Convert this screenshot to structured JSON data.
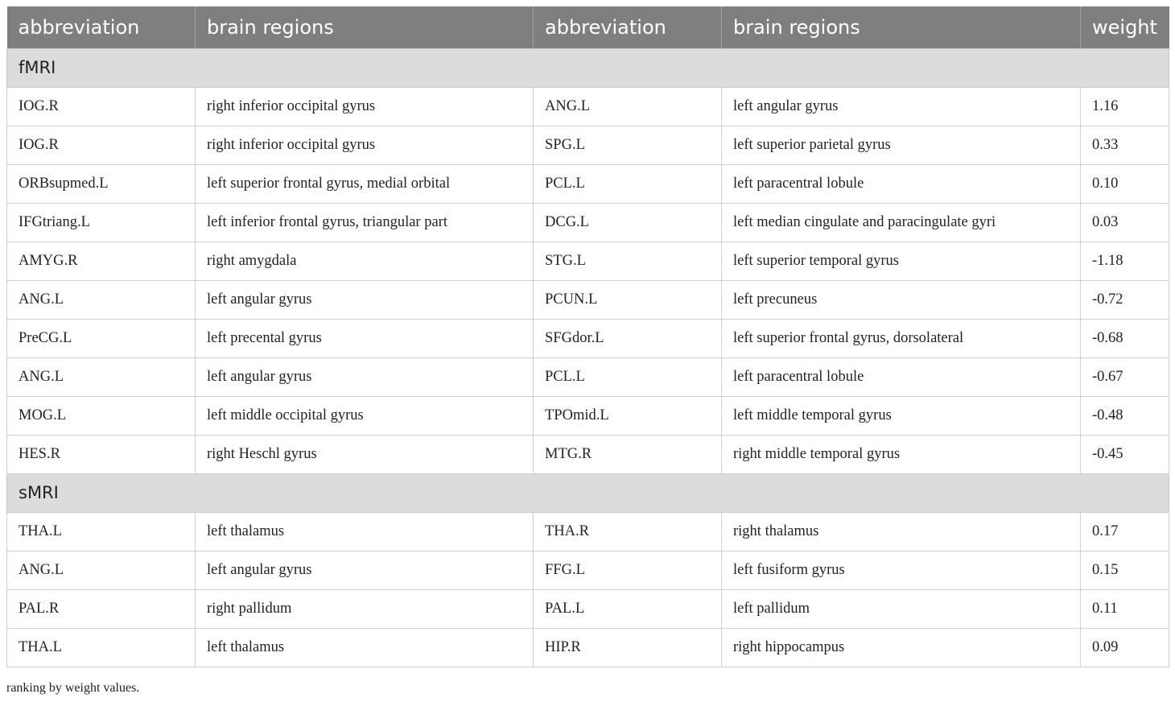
{
  "columns": [
    "abbreviation",
    "brain regions",
    "abbreviation",
    "brain regions",
    "weight"
  ],
  "sections": [
    {
      "label": "fMRI",
      "rows": [
        [
          "IOG.R",
          "right inferior occipital gyrus",
          "ANG.L",
          "left angular gyrus",
          "1.16"
        ],
        [
          "IOG.R",
          "right inferior occipital gyrus",
          "SPG.L",
          "left superior parietal gyrus",
          "0.33"
        ],
        [
          "ORBsupmed.L",
          "left superior frontal gyrus, medial orbital",
          "PCL.L",
          "left paracentral lobule",
          "0.10"
        ],
        [
          "IFGtriang.L",
          "left inferior frontal gyrus, triangular part",
          "DCG.L",
          "left median cingulate and paracingulate gyri",
          "0.03"
        ],
        [
          "AMYG.R",
          "right amygdala",
          "STG.L",
          "left superior temporal gyrus",
          "-1.18"
        ],
        [
          "ANG.L",
          "left angular gyrus",
          "PCUN.L",
          "left precuneus",
          "-0.72"
        ],
        [
          "PreCG.L",
          "left precental gyrus",
          "SFGdor.L",
          "left superior frontal gyrus, dorsolateral",
          "-0.68"
        ],
        [
          "ANG.L",
          "left angular gyrus",
          "PCL.L",
          "left paracentral lobule",
          "-0.67"
        ],
        [
          "MOG.L",
          "left middle occipital gyrus",
          "TPOmid.L",
          "left middle temporal gyrus",
          "-0.48"
        ],
        [
          "HES.R",
          "right Heschl gyrus",
          "MTG.R",
          "right middle temporal gyrus",
          "-0.45"
        ]
      ]
    },
    {
      "label": "sMRI",
      "rows": [
        [
          "THA.L",
          "left thalamus",
          "THA.R",
          "right thalamus",
          "0.17"
        ],
        [
          "ANG.L",
          "left angular gyrus",
          "FFG.L",
          "left fusiform gyrus",
          "0.15"
        ],
        [
          "PAL.R",
          "right pallidum",
          "PAL.L",
          "left pallidum",
          "0.11"
        ],
        [
          "THA.L",
          "left thalamus",
          "HIP.R",
          "right hippocampus",
          "0.09"
        ]
      ]
    }
  ],
  "footnote": "ranking by weight values."
}
